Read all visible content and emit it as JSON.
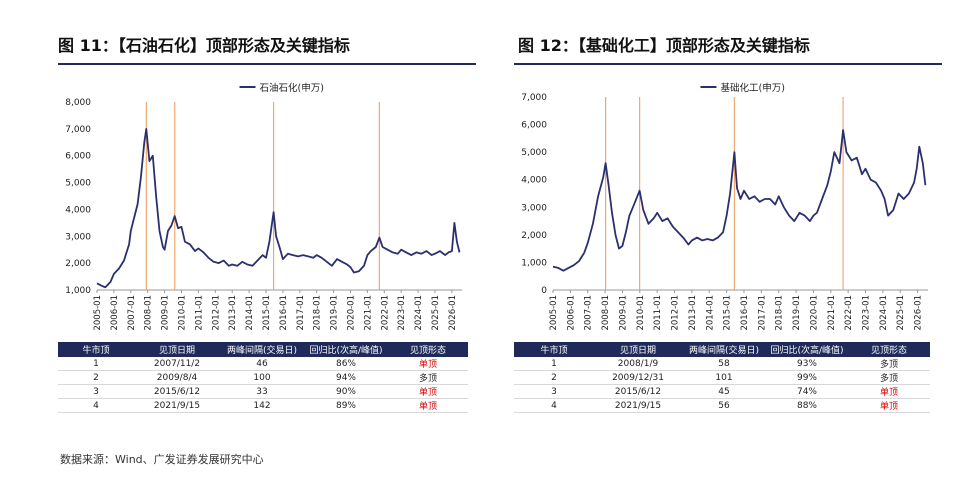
{
  "source": "数据来源：Wind、广发证券发展研究中心",
  "panels": [
    {
      "title": "图 11：【石油石化】顶部形态及关键指标",
      "table": {
        "headers": [
          "牛市顶",
          "见顶日期",
          "两峰间隔(交易日)",
          "回归比(次高/峰值)",
          "见顶形态"
        ],
        "rows": [
          {
            "cells": [
              "1",
              "2007/11/2",
              "46",
              "86%",
              "单顶"
            ],
            "red": true
          },
          {
            "cells": [
              "2",
              "2009/8/4",
              "100",
              "94%",
              "多顶"
            ],
            "red": false
          },
          {
            "cells": [
              "3",
              "2015/6/12",
              "33",
              "90%",
              "单顶"
            ],
            "red": true
          },
          {
            "cells": [
              "4",
              "2021/9/15",
              "142",
              "89%",
              "单顶"
            ],
            "red": true
          }
        ]
      }
    },
    {
      "title": "图 12：【基础化工】顶部形态及关键指标",
      "table": {
        "headers": [
          "牛市顶",
          "见顶日期",
          "两峰间隔(交易日)",
          "回归比(次高/峰值)",
          "见顶形态"
        ],
        "rows": [
          {
            "cells": [
              "1",
              "2008/1/9",
              "58",
              "93%",
              "多顶"
            ],
            "red": false
          },
          {
            "cells": [
              "2",
              "2009/12/31",
              "101",
              "99%",
              "多顶"
            ],
            "red": false
          },
          {
            "cells": [
              "3",
              "2015/6/12",
              "45",
              "74%",
              "单顶"
            ],
            "red": true
          },
          {
            "cells": [
              "4",
              "2021/9/15",
              "56",
              "88%",
              "单顶"
            ],
            "red": true
          }
        ]
      }
    }
  ],
  "colors": {
    "line": "#2b2f6e",
    "marker": "#f0a870",
    "header": "#1f2a5a",
    "red": "#d40000"
  },
  "chart_data": [
    {
      "type": "line",
      "legend": "石油石化(申万)",
      "legend_position": "top-center",
      "ylim": [
        1000,
        8000
      ],
      "yticks": [
        "1,000",
        "2,000",
        "3,000",
        "4,000",
        "5,000",
        "6,000",
        "7,000",
        "8,000"
      ],
      "xticks": [
        "2005-01",
        "2006-01",
        "2007-01",
        "2008-01",
        "2009-01",
        "2010-01",
        "2011-01",
        "2012-01",
        "2013-01",
        "2014-01",
        "2015-01",
        "2016-01",
        "2017-01",
        "2018-01",
        "2019-01",
        "2020-01",
        "2021-01",
        "2022-01",
        "2023-01",
        "2024-01",
        "2025-01",
        "2026-01"
      ],
      "x_range": [
        2005.0,
        2026.6
      ],
      "grid": false,
      "markers": [
        2007.92,
        2009.6,
        2015.45,
        2021.71
      ],
      "series": [
        {
          "x": [
            2005.0,
            2005.3,
            2005.5,
            2005.8,
            2006.0,
            2006.3,
            2006.6,
            2006.9,
            2007.0,
            2007.2,
            2007.4,
            2007.6,
            2007.8,
            2007.92,
            2008.1,
            2008.3,
            2008.5,
            2008.7,
            2008.9,
            2009.0,
            2009.2,
            2009.4,
            2009.6,
            2009.8,
            2010.0,
            2010.2,
            2010.5,
            2010.8,
            2011.0,
            2011.3,
            2011.6,
            2011.9,
            2012.2,
            2012.5,
            2012.8,
            2013.0,
            2013.3,
            2013.6,
            2013.9,
            2014.2,
            2014.5,
            2014.8,
            2015.0,
            2015.2,
            2015.45,
            2015.6,
            2015.8,
            2016.0,
            2016.3,
            2016.6,
            2016.9,
            2017.2,
            2017.5,
            2017.8,
            2018.0,
            2018.3,
            2018.6,
            2018.9,
            2019.2,
            2019.5,
            2019.8,
            2020.0,
            2020.2,
            2020.5,
            2020.8,
            2021.0,
            2021.2,
            2021.5,
            2021.71,
            2021.9,
            2022.2,
            2022.5,
            2022.8,
            2023.0,
            2023.3,
            2023.6,
            2023.9,
            2024.2,
            2024.5,
            2024.8,
            2025.0,
            2025.3,
            2025.6,
            2025.8,
            2026.0,
            2026.15,
            2026.3,
            2026.45
          ],
          "y": [
            1250,
            1150,
            1100,
            1300,
            1600,
            1800,
            2100,
            2700,
            3200,
            3700,
            4200,
            5200,
            6500,
            7000,
            5800,
            6000,
            4500,
            3200,
            2600,
            2500,
            3200,
            3400,
            3750,
            3300,
            3350,
            2800,
            2700,
            2450,
            2550,
            2400,
            2200,
            2050,
            2000,
            2100,
            1900,
            1950,
            1900,
            2050,
            1950,
            1900,
            2100,
            2300,
            2200,
            2800,
            3900,
            3000,
            2600,
            2150,
            2350,
            2300,
            2250,
            2300,
            2250,
            2200,
            2300,
            2200,
            2050,
            1900,
            2150,
            2050,
            1950,
            1850,
            1650,
            1700,
            1900,
            2300,
            2450,
            2600,
            2950,
            2600,
            2500,
            2400,
            2350,
            2500,
            2400,
            2300,
            2400,
            2350,
            2450,
            2300,
            2350,
            2450,
            2300,
            2400,
            2450,
            3500,
            2800,
            2400
          ]
        }
      ]
    },
    {
      "type": "line",
      "legend": "基础化工(申万)",
      "legend_position": "top-center",
      "ylim": [
        0,
        7000
      ],
      "yticks": [
        "0",
        "1,000",
        "2,000",
        "3,000",
        "4,000",
        "5,000",
        "6,000",
        "7,000"
      ],
      "xticks": [
        "2005-01",
        "2006-01",
        "2007-01",
        "2008-01",
        "2009-01",
        "2010-01",
        "2011-01",
        "2012-01",
        "2013-01",
        "2014-01",
        "2015-01",
        "2016-01",
        "2017-01",
        "2018-01",
        "2019-01",
        "2020-01",
        "2021-01",
        "2022-01",
        "2023-01",
        "2024-01",
        "2025-01",
        "2026-01"
      ],
      "x_range": [
        2005.0,
        2026.6
      ],
      "grid": false,
      "markers": [
        2008.03,
        2009.99,
        2015.45,
        2021.71
      ],
      "series": [
        {
          "x": [
            2005.0,
            2005.3,
            2005.6,
            2005.9,
            2006.2,
            2006.5,
            2006.8,
            2007.0,
            2007.3,
            2007.6,
            2007.9,
            2008.03,
            2008.2,
            2008.4,
            2008.6,
            2008.8,
            2009.0,
            2009.2,
            2009.4,
            2009.6,
            2009.99,
            2010.2,
            2010.5,
            2010.8,
            2011.0,
            2011.3,
            2011.6,
            2011.9,
            2012.2,
            2012.5,
            2012.8,
            2013.0,
            2013.3,
            2013.6,
            2013.9,
            2014.2,
            2014.5,
            2014.8,
            2015.0,
            2015.2,
            2015.45,
            2015.6,
            2015.8,
            2016.0,
            2016.3,
            2016.6,
            2016.9,
            2017.2,
            2017.5,
            2017.8,
            2018.0,
            2018.3,
            2018.6,
            2018.9,
            2019.2,
            2019.5,
            2019.8,
            2020.0,
            2020.2,
            2020.5,
            2020.8,
            2021.0,
            2021.2,
            2021.5,
            2021.71,
            2021.9,
            2022.2,
            2022.5,
            2022.8,
            2023.0,
            2023.3,
            2023.6,
            2023.9,
            2024.1,
            2024.3,
            2024.6,
            2024.9,
            2025.2,
            2025.5,
            2025.8,
            2025.95,
            2026.1,
            2026.3,
            2026.45
          ],
          "y": [
            850,
            800,
            700,
            800,
            900,
            1050,
            1350,
            1700,
            2400,
            3400,
            4100,
            4600,
            3800,
            2800,
            2000,
            1500,
            1600,
            2100,
            2700,
            3000,
            3600,
            2900,
            2400,
            2600,
            2800,
            2500,
            2600,
            2300,
            2100,
            1900,
            1650,
            1800,
            1900,
            1800,
            1850,
            1800,
            1900,
            2100,
            2700,
            3500,
            5000,
            3700,
            3300,
            3600,
            3300,
            3400,
            3200,
            3300,
            3300,
            3100,
            3400,
            3000,
            2700,
            2500,
            2800,
            2700,
            2500,
            2700,
            2800,
            3300,
            3800,
            4300,
            5000,
            4600,
            5800,
            5000,
            4700,
            4800,
            4200,
            4400,
            4000,
            3900,
            3600,
            3300,
            2700,
            2900,
            3500,
            3300,
            3500,
            3900,
            4400,
            5200,
            4600,
            3800
          ]
        }
      ]
    }
  ]
}
